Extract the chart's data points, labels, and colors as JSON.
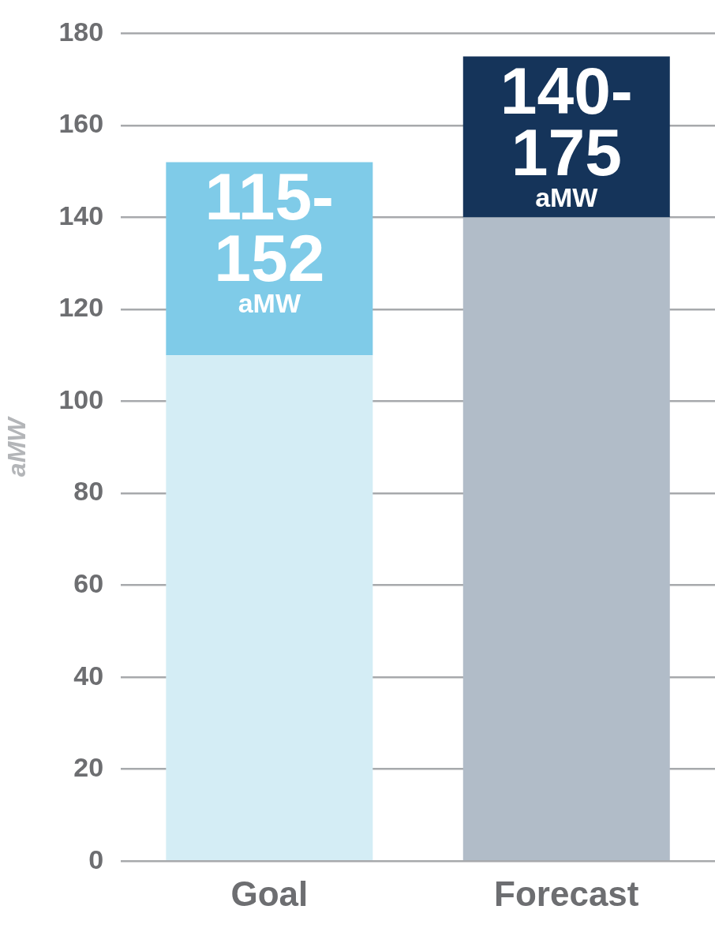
{
  "chart_data": {
    "type": "bar",
    "stacked": true,
    "categories": [
      "Goal",
      "Forecast"
    ],
    "ylabel": "aMW",
    "ylim": [
      0,
      180
    ],
    "yticks": [
      0,
      20,
      40,
      60,
      80,
      100,
      120,
      140,
      160,
      180
    ],
    "grid": "y",
    "legend": false,
    "series": [
      {
        "colors": [
          "#d4edf5",
          "#b1bcc8"
        ],
        "values": [
          110,
          140
        ]
      },
      {
        "colors": [
          "#7fcbe8",
          "#15345a"
        ],
        "values": [
          42,
          35
        ],
        "value_labels": [
          "115-\n152\naMW",
          "140-\n175\naMW"
        ]
      }
    ]
  }
}
